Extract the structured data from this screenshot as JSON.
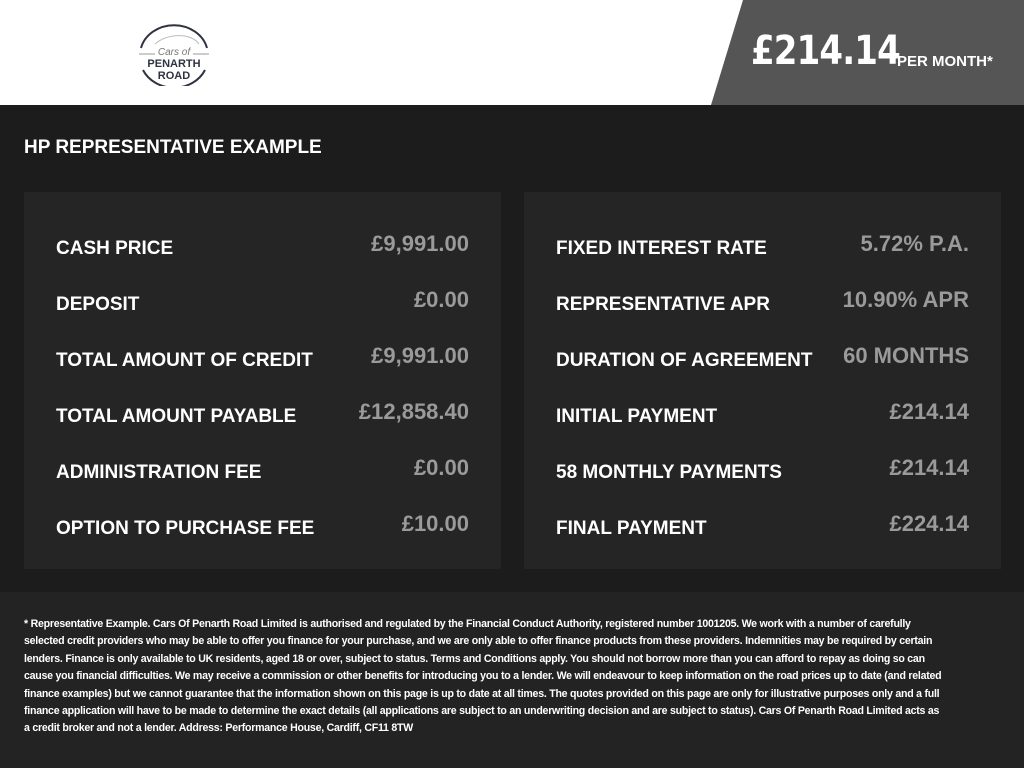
{
  "logo": {
    "script": "Cars of",
    "name": "PENARTH ROAD"
  },
  "header": {
    "price": "£214.14",
    "per_month": "PER MONTH*"
  },
  "title": "HP REPRESENTATIVE EXAMPLE",
  "left_panel": [
    {
      "label": "CASH PRICE",
      "value": "£9,991.00"
    },
    {
      "label": "DEPOSIT",
      "value": "£0.00"
    },
    {
      "label": "TOTAL AMOUNT OF CREDIT",
      "value": "£9,991.00"
    },
    {
      "label": "TOTAL AMOUNT PAYABLE",
      "value": "£12,858.40"
    },
    {
      "label": "ADMINISTRATION FEE",
      "value": "£0.00"
    },
    {
      "label": "OPTION TO PURCHASE FEE",
      "value": "£10.00"
    }
  ],
  "right_panel": [
    {
      "label": "FIXED INTEREST RATE",
      "value": "5.72% P.A."
    },
    {
      "label": "REPRESENTATIVE APR",
      "value": "10.90% APR"
    },
    {
      "label": "DURATION OF AGREEMENT",
      "value": "60 MONTHS"
    },
    {
      "label": "INITIAL PAYMENT",
      "value": "£214.14"
    },
    {
      "label": "58 MONTHLY PAYMENTS",
      "value": "£214.14"
    },
    {
      "label": "FINAL PAYMENT",
      "value": "£224.14"
    }
  ],
  "disclaimer": "* Representative Example. Cars Of Penarth Road Limited is authorised and regulated by the Financial Conduct Authority, registered number 1001205. We work with a number of carefully selected credit providers who may be able to offer you finance for your purchase, and we are only able to offer finance products from these providers. Indemnities may be required by certain lenders. Finance is only available to UK residents, aged 18 or over, subject to status. Terms and Conditions apply. You should not borrow more than you can afford to repay as doing so can cause you financial difficulties. We may receive a commission or other benefits for introducing you to a lender. We will endeavour to keep information on the road prices up to date (and related finance examples) but we cannot guarantee that the information shown on this page is up to date at all times. The quotes provided on this page are only for illustrative purposes only and a full finance application will have to be made to determine the exact details (all applications are subject to an underwriting decision and are subject to status). Cars Of Penarth Road Limited acts as a credit broker and not a lender. Address: Performance House, Cardiff, CF11 8TW"
}
